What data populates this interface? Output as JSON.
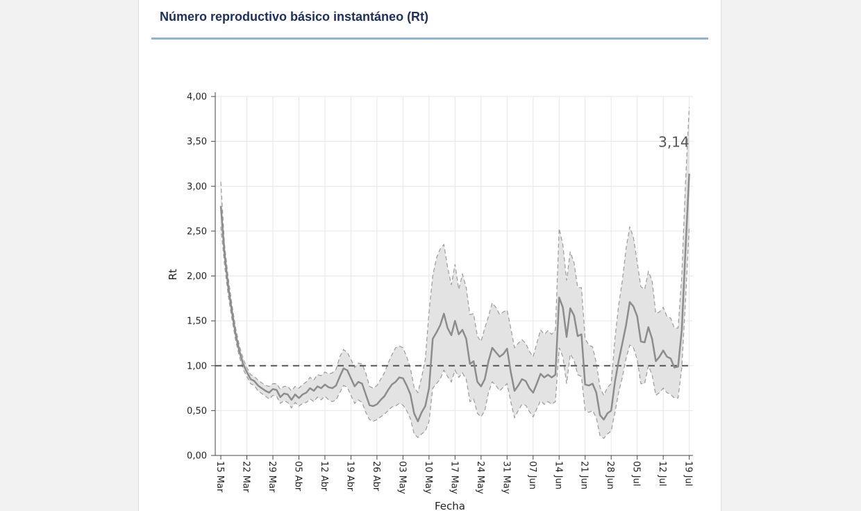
{
  "page": {
    "title": "Número reproductivo básico instantáneo (Rt)"
  },
  "colors": {
    "title": "#1d2f5e",
    "rule": "#8fb2d6",
    "band_fill": "#e3e3e3",
    "band_edge": "#9a9a9a",
    "line": "#8c8c8c",
    "reference": "#555555",
    "grid": "#e6e6e6"
  },
  "chart_data": {
    "type": "line",
    "title": "Número reproductivo básico instantáneo (Rt)",
    "xlabel": "Fecha",
    "ylabel": "Rt",
    "ylim": [
      0,
      4
    ],
    "yticks": [
      0,
      0.5,
      1,
      1.5,
      2,
      2.5,
      3,
      3.5,
      4
    ],
    "ytick_labels": [
      "0,00",
      "0,50",
      "1,00",
      "1,50",
      "2,00",
      "2,50",
      "3,00",
      "3,50",
      "4,00"
    ],
    "xlim": [
      -1.5,
      127
    ],
    "xticks": [
      0,
      7,
      14,
      21,
      28,
      35,
      42,
      49,
      56,
      63,
      70,
      77,
      84,
      91,
      98,
      105,
      112,
      119,
      126
    ],
    "xtick_labels": [
      "15 Mar",
      "22 Mar",
      "29 Mar",
      "05 Abr",
      "12 Abr",
      "19 Abr",
      "26 Abr",
      "03 May",
      "10 May",
      "17 May",
      "24 May",
      "31 May",
      "07 Jun",
      "14 Jun",
      "21 Jun",
      "28 Jun",
      "05 Jul",
      "12 Jul",
      "19 Jul"
    ],
    "reference_line": 1.0,
    "last_value_label": "3,14",
    "grid": true,
    "series": [
      {
        "name": "Rt",
        "x": [
          0,
          1,
          2,
          3,
          4,
          5,
          6,
          7,
          8,
          9,
          10,
          11,
          12,
          13,
          14,
          15,
          16,
          17,
          18,
          19,
          20,
          21,
          22,
          23,
          24,
          25,
          26,
          27,
          28,
          29,
          30,
          31,
          32,
          33,
          34,
          35,
          36,
          37,
          38,
          39,
          40,
          41,
          42,
          43,
          44,
          45,
          46,
          47,
          48,
          49,
          50,
          51,
          52,
          53,
          54,
          55,
          56,
          57,
          58,
          59,
          60,
          61,
          62,
          63,
          64,
          65,
          66,
          67,
          68,
          69,
          70,
          71,
          72,
          73,
          74,
          75,
          76,
          77,
          78,
          79,
          80,
          81,
          82,
          83,
          84,
          85,
          86,
          87,
          88,
          89,
          90,
          91,
          92,
          93,
          94,
          95,
          96,
          97,
          98,
          99,
          100,
          101,
          102,
          103,
          104,
          105,
          106,
          107,
          108,
          109,
          110,
          111,
          112,
          113,
          114,
          115,
          116,
          117,
          118,
          119,
          120,
          121,
          122,
          123,
          124,
          125,
          126
        ],
        "y": [
          2.78,
          2.25,
          1.88,
          1.6,
          1.35,
          1.16,
          1.02,
          0.93,
          0.85,
          0.83,
          0.78,
          0.75,
          0.72,
          0.7,
          0.74,
          0.73,
          0.65,
          0.69,
          0.68,
          0.62,
          0.68,
          0.64,
          0.68,
          0.7,
          0.75,
          0.72,
          0.77,
          0.75,
          0.79,
          0.76,
          0.75,
          0.78,
          0.88,
          0.97,
          0.95,
          0.86,
          0.77,
          0.82,
          0.8,
          0.68,
          0.56,
          0.55,
          0.57,
          0.62,
          0.66,
          0.73,
          0.79,
          0.82,
          0.87,
          0.86,
          0.78,
          0.68,
          0.47,
          0.38,
          0.48,
          0.55,
          0.75,
          1.3,
          1.37,
          1.45,
          1.58,
          1.42,
          1.34,
          1.5,
          1.35,
          1.4,
          1.3,
          1.02,
          1.05,
          0.82,
          0.77,
          0.85,
          1.05,
          1.2,
          1.15,
          1.1,
          1.13,
          1.19,
          0.93,
          0.72,
          0.78,
          0.85,
          0.83,
          0.75,
          0.7,
          0.8,
          0.91,
          0.87,
          0.9,
          0.87,
          0.9,
          1.76,
          1.65,
          1.32,
          1.64,
          1.56,
          1.33,
          1.35,
          0.79,
          0.78,
          0.8,
          0.7,
          0.45,
          0.4,
          0.47,
          0.5,
          0.82,
          1.05,
          1.25,
          1.45,
          1.71,
          1.66,
          1.55,
          1.27,
          1.26,
          1.43,
          1.3,
          1.05,
          1.1,
          1.17,
          1.1,
          1.08,
          0.98,
          0.99,
          1.4,
          2.3,
          3.14
        ]
      },
      {
        "name": "Upper bound",
        "x": [
          0,
          1,
          2,
          3,
          4,
          5,
          6,
          7,
          8,
          9,
          10,
          11,
          12,
          13,
          14,
          15,
          16,
          17,
          18,
          19,
          20,
          21,
          22,
          23,
          24,
          25,
          26,
          27,
          28,
          29,
          30,
          31,
          32,
          33,
          34,
          35,
          36,
          37,
          38,
          39,
          40,
          41,
          42,
          43,
          44,
          45,
          46,
          47,
          48,
          49,
          50,
          51,
          52,
          53,
          54,
          55,
          56,
          57,
          58,
          59,
          60,
          61,
          62,
          63,
          64,
          65,
          66,
          67,
          68,
          69,
          70,
          71,
          72,
          73,
          74,
          75,
          76,
          77,
          78,
          79,
          80,
          81,
          82,
          83,
          84,
          85,
          86,
          87,
          88,
          89,
          90,
          91,
          92,
          93,
          94,
          95,
          96,
          97,
          98,
          99,
          100,
          101,
          102,
          103,
          104,
          105,
          106,
          107,
          108,
          109,
          110,
          111,
          112,
          113,
          114,
          115,
          116,
          117,
          118,
          119,
          120,
          121,
          122,
          123,
          124,
          125,
          126
        ],
        "y": [
          3.05,
          2.35,
          1.98,
          1.68,
          1.42,
          1.22,
          1.08,
          0.98,
          0.9,
          0.88,
          0.84,
          0.81,
          0.78,
          0.77,
          0.8,
          0.8,
          0.74,
          0.77,
          0.77,
          0.72,
          0.77,
          0.75,
          0.79,
          0.82,
          0.87,
          0.84,
          0.9,
          0.89,
          0.93,
          0.91,
          0.92,
          0.96,
          1.1,
          1.18,
          1.15,
          1.07,
          0.98,
          1.03,
          1.02,
          0.92,
          0.77,
          0.75,
          0.78,
          0.85,
          0.92,
          1.03,
          1.12,
          1.2,
          1.22,
          1.2,
          1.1,
          0.97,
          0.76,
          0.7,
          0.87,
          1.07,
          1.6,
          2.0,
          2.2,
          2.3,
          2.35,
          2.1,
          1.9,
          2.13,
          1.85,
          2.02,
          1.87,
          1.57,
          1.58,
          1.33,
          1.27,
          1.42,
          1.55,
          1.7,
          1.65,
          1.57,
          1.6,
          1.62,
          1.42,
          1.2,
          1.25,
          1.29,
          1.25,
          1.16,
          1.1,
          1.25,
          1.4,
          1.35,
          1.39,
          1.35,
          1.4,
          2.53,
          2.35,
          1.95,
          2.27,
          2.15,
          1.87,
          1.87,
          1.3,
          1.23,
          1.21,
          1.03,
          0.76,
          0.67,
          0.76,
          0.8,
          1.3,
          1.67,
          1.95,
          2.3,
          2.55,
          2.43,
          2.15,
          1.88,
          1.85,
          2.05,
          1.95,
          1.58,
          1.6,
          1.65,
          1.55,
          1.53,
          1.42,
          1.42,
          2.0,
          3.05,
          3.88
        ]
      },
      {
        "name": "Lower bound",
        "x": [
          0,
          1,
          2,
          3,
          4,
          5,
          6,
          7,
          8,
          9,
          10,
          11,
          12,
          13,
          14,
          15,
          16,
          17,
          18,
          19,
          20,
          21,
          22,
          23,
          24,
          25,
          26,
          27,
          28,
          29,
          30,
          31,
          32,
          33,
          34,
          35,
          36,
          37,
          38,
          39,
          40,
          41,
          42,
          43,
          44,
          45,
          46,
          47,
          48,
          49,
          50,
          51,
          52,
          53,
          54,
          55,
          56,
          57,
          58,
          59,
          60,
          61,
          62,
          63,
          64,
          65,
          66,
          67,
          68,
          69,
          70,
          71,
          72,
          73,
          74,
          75,
          76,
          77,
          78,
          79,
          80,
          81,
          82,
          83,
          84,
          85,
          86,
          87,
          88,
          89,
          90,
          91,
          92,
          93,
          94,
          95,
          96,
          97,
          98,
          99,
          100,
          101,
          102,
          103,
          104,
          105,
          106,
          107,
          108,
          109,
          110,
          111,
          112,
          113,
          114,
          115,
          116,
          117,
          118,
          119,
          120,
          121,
          122,
          123,
          124,
          125,
          126
        ],
        "y": [
          2.55,
          2.12,
          1.78,
          1.52,
          1.28,
          1.1,
          0.96,
          0.88,
          0.8,
          0.78,
          0.72,
          0.69,
          0.66,
          0.63,
          0.67,
          0.66,
          0.58,
          0.61,
          0.59,
          0.53,
          0.59,
          0.55,
          0.58,
          0.59,
          0.63,
          0.6,
          0.65,
          0.62,
          0.66,
          0.62,
          0.6,
          0.62,
          0.7,
          0.78,
          0.76,
          0.67,
          0.58,
          0.62,
          0.59,
          0.48,
          0.4,
          0.38,
          0.4,
          0.43,
          0.46,
          0.5,
          0.54,
          0.55,
          0.58,
          0.56,
          0.5,
          0.41,
          0.24,
          0.2,
          0.24,
          0.27,
          0.38,
          0.75,
          0.8,
          0.85,
          0.95,
          0.88,
          0.82,
          0.95,
          0.87,
          0.92,
          0.85,
          0.6,
          0.63,
          0.47,
          0.43,
          0.5,
          0.7,
          0.82,
          0.78,
          0.72,
          0.76,
          0.8,
          0.6,
          0.42,
          0.5,
          0.57,
          0.56,
          0.49,
          0.43,
          0.52,
          0.61,
          0.57,
          0.6,
          0.57,
          0.6,
          1.2,
          1.1,
          0.8,
          1.13,
          1.06,
          0.9,
          0.88,
          0.5,
          0.48,
          0.5,
          0.42,
          0.22,
          0.19,
          0.24,
          0.27,
          0.48,
          0.7,
          0.87,
          1.08,
          1.23,
          1.2,
          1.07,
          0.8,
          0.8,
          1.0,
          0.9,
          0.67,
          0.7,
          0.75,
          0.7,
          0.68,
          0.64,
          0.64,
          0.98,
          1.73,
          2.55
        ]
      }
    ]
  }
}
